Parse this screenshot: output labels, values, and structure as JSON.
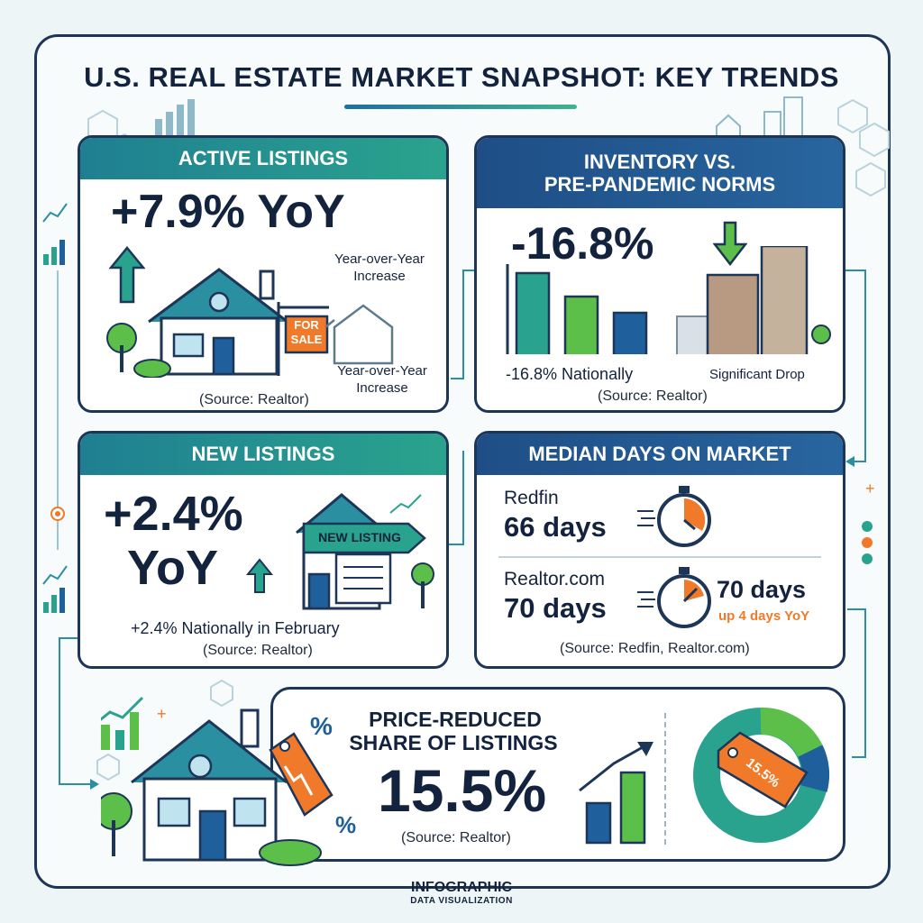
{
  "title": "U.S. REAL ESTATE MARKET SNAPSHOT: KEY TRENDS",
  "active_listings": {
    "header": "ACTIVE LISTINGS",
    "value": "+7.9% YoY",
    "note_top": "Year-over-Year Increase",
    "sign_line1": "FOR",
    "sign_line2": "SALE",
    "note_bottom": "Year-over-Year Increase",
    "source": "(Source: Realtor)"
  },
  "inventory": {
    "header_line1": "INVENTORY VS.",
    "header_line2": "PRE-PANDEMIC NORMS",
    "value": "-16.8%",
    "note_left": "-16.8% Nationally",
    "note_right": "Significant Drop",
    "source": "(Source: Realtor)"
  },
  "new_listings": {
    "header": "NEW LISTINGS",
    "value_line1": "+2.4%",
    "value_line2": "YoY",
    "sign": "NEW LISTING",
    "note": "+2.4% Nationally in February",
    "source": "(Source: Realtor)"
  },
  "days_on_market": {
    "header": "MEDIAN DAYS ON MARKET",
    "redfin_label": "Redfin",
    "redfin_value": "66 days",
    "realtor_label": "Realtor.com",
    "realtor_value": "70 days",
    "side_value": "70 days",
    "side_change": "up 4 days YoY",
    "source": "(Source: Redfin, Realtor.com)"
  },
  "price_reduced": {
    "header_line1": "PRICE-REDUCED",
    "header_line2": "SHARE OF LISTINGS",
    "value": "15.5%",
    "source": "(Source: Realtor)",
    "tag_label": "15.5%",
    "percent_symbol": "%"
  },
  "footer": {
    "line1": "INFOGRAPHIC",
    "line2": "DATA VISUALIZATION"
  },
  "colors": {
    "navy": "#1d3557",
    "teal": "#2aa38e",
    "green": "#5cbf4a",
    "orange": "#f07a2a",
    "blue": "#1f5f9c"
  }
}
